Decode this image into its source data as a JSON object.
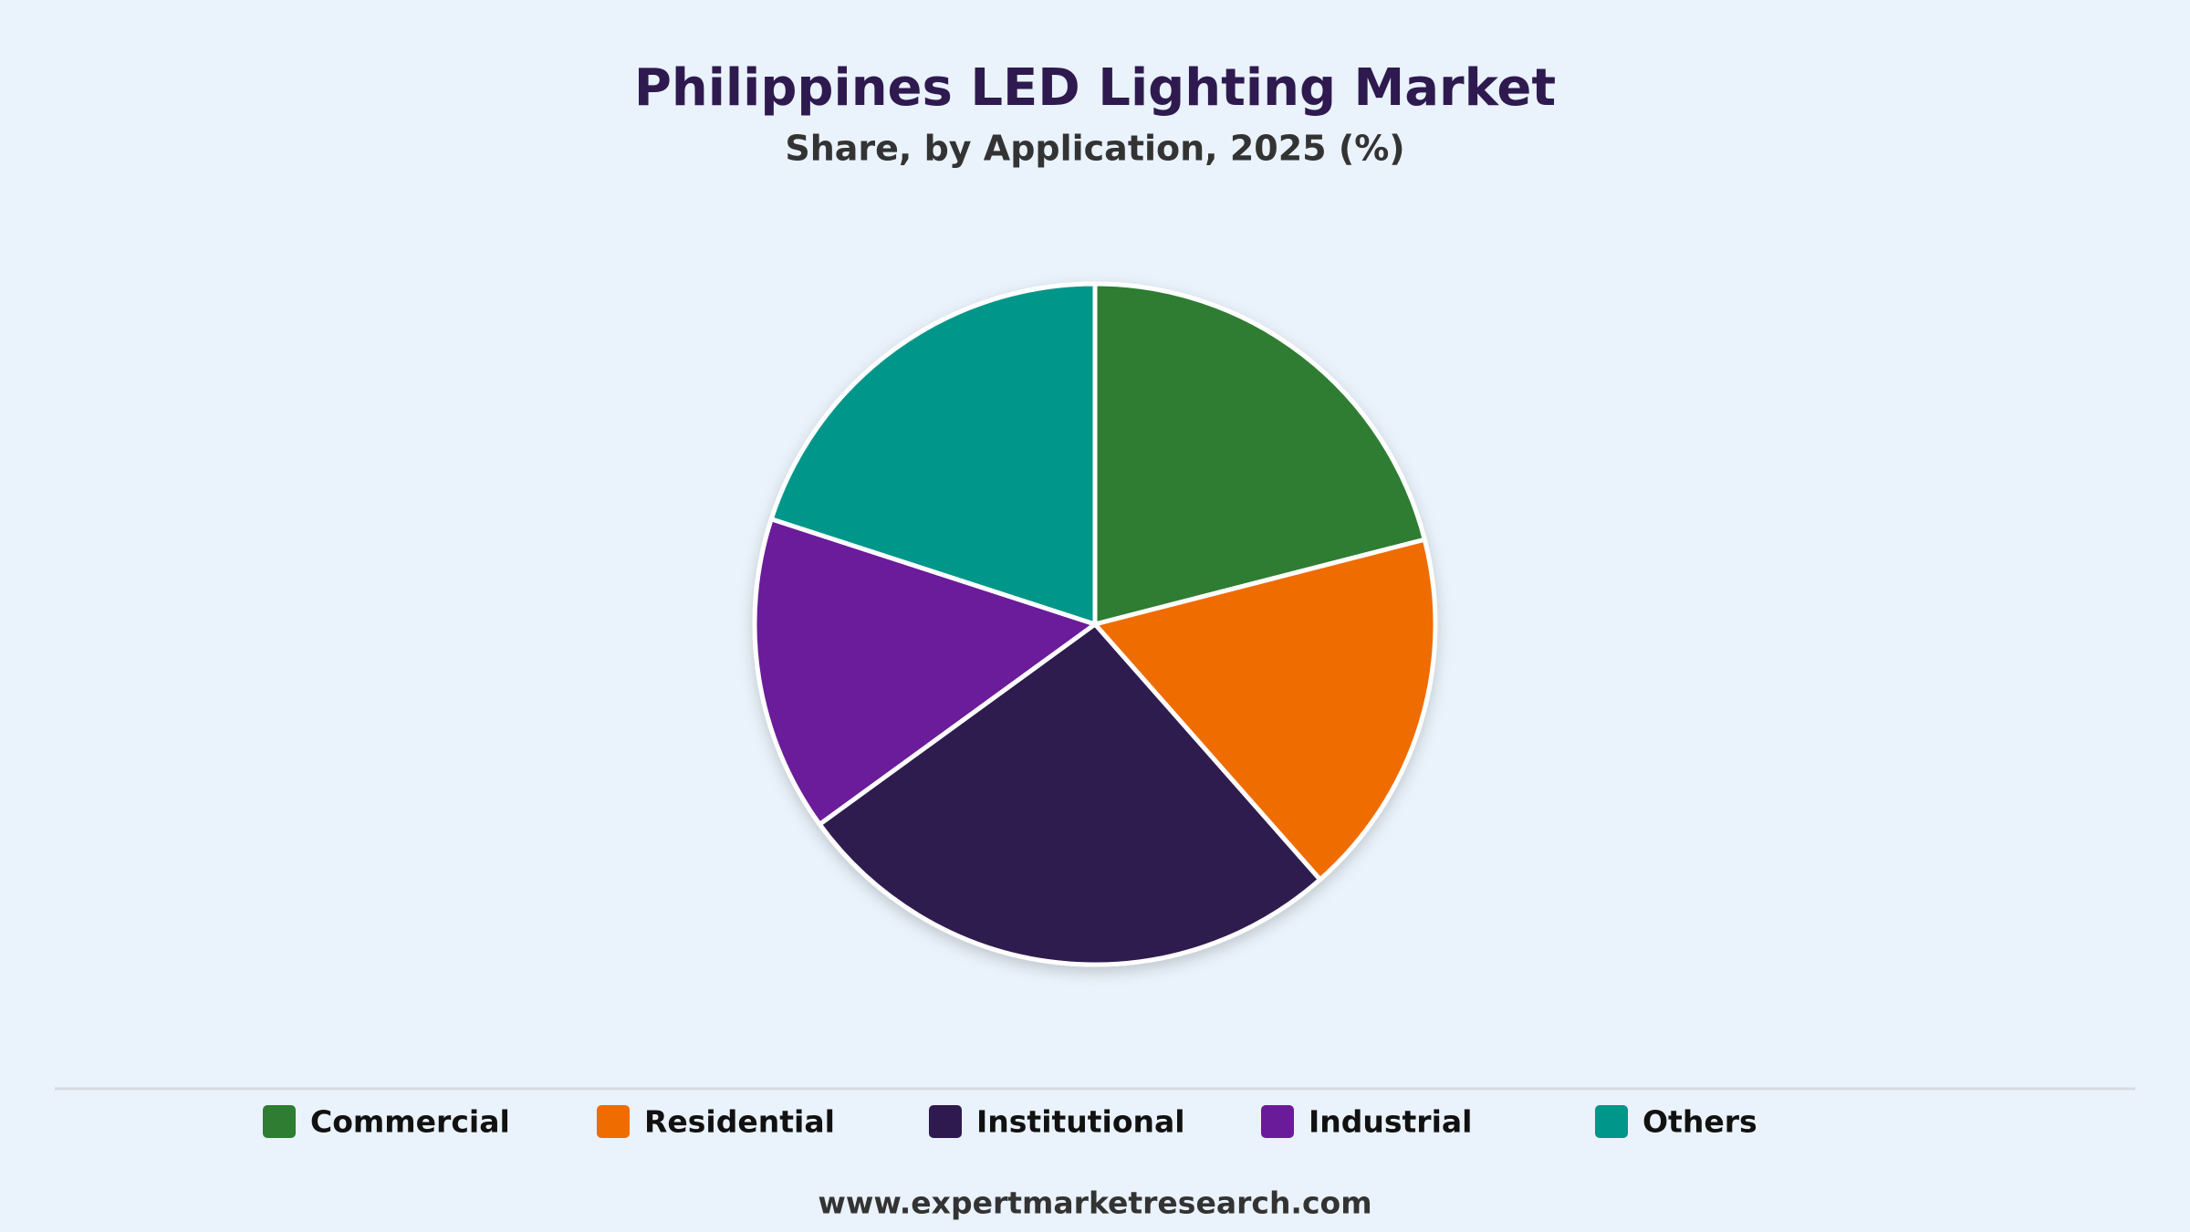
{
  "chart_data": {
    "type": "pie",
    "title": "Philippines LED Lighting Market",
    "subtitle": "Share, by Application, 2025 (%)",
    "categories": [
      "Commercial",
      "Residential",
      "Institutional",
      "Industrial",
      "Others"
    ],
    "values": [
      21,
      17.5,
      26.5,
      15,
      20
    ],
    "colors": [
      "#2e7d32",
      "#ef6c00",
      "#2e1a4f",
      "#6a1b9a",
      "#00968a"
    ],
    "source": "www.expertmarketresearch.com"
  }
}
